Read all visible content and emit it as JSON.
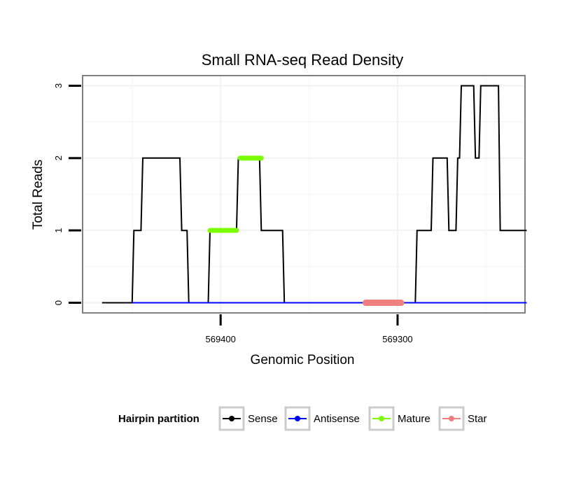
{
  "chart_data": {
    "type": "line",
    "title": "Small RNA-seq Read Density",
    "xlabel": "Genomic Position",
    "ylabel": "Total Reads",
    "x_reversed": true,
    "xlim": [
      569478,
      569228
    ],
    "ylim": [
      -0.14,
      3.14
    ],
    "xticks": [
      {
        "value": 569400,
        "label": "569400"
      },
      {
        "value": 569300,
        "label": "569300"
      }
    ],
    "yticks": [
      {
        "value": 0,
        "label": "0"
      },
      {
        "value": 1,
        "label": "1"
      },
      {
        "value": 2,
        "label": "2"
      },
      {
        "value": 3,
        "label": "3"
      }
    ],
    "grid": true,
    "legend_position": "bottom",
    "legend_title": "Hairpin partition",
    "series": [
      {
        "name": "Sense",
        "color": "#000000",
        "x": [
          569467,
          569450,
          569449,
          569445,
          569444,
          569423,
          569422,
          569419,
          569418,
          569417,
          569407,
          569406,
          569391,
          569390,
          569378,
          569377,
          569365,
          569364,
          569351,
          569350,
          569337,
          569290,
          569289,
          569281,
          569280,
          569272,
          569271,
          569267,
          569266,
          569265,
          569264,
          569257,
          569256,
          569254,
          569253,
          569243,
          569242,
          569240,
          569239,
          569227
        ],
        "y": [
          0,
          0,
          1,
          1,
          2,
          2,
          1,
          1,
          0,
          0,
          0,
          1,
          1,
          2,
          2,
          1,
          1,
          0,
          0,
          0,
          0,
          0,
          1,
          1,
          2,
          2,
          1,
          1,
          2,
          2,
          3,
          3,
          2,
          2,
          3,
          3,
          1,
          1,
          1,
          1
        ]
      },
      {
        "name": "Antisense",
        "color": "#0000ff",
        "x": [
          569450,
          569227
        ],
        "y": [
          0,
          0
        ]
      },
      {
        "name": "Mature",
        "color": "#7cfc00",
        "segments": [
          {
            "x": [
              569406,
              569391
            ],
            "y": [
              1,
              1
            ]
          },
          {
            "x": [
              569389,
              569377
            ],
            "y": [
              2,
              2
            ]
          }
        ]
      },
      {
        "name": "Star",
        "color": "#f08080",
        "segments": [
          {
            "x": [
              569318,
              569298
            ],
            "y": [
              0,
              0
            ]
          }
        ]
      }
    ]
  }
}
